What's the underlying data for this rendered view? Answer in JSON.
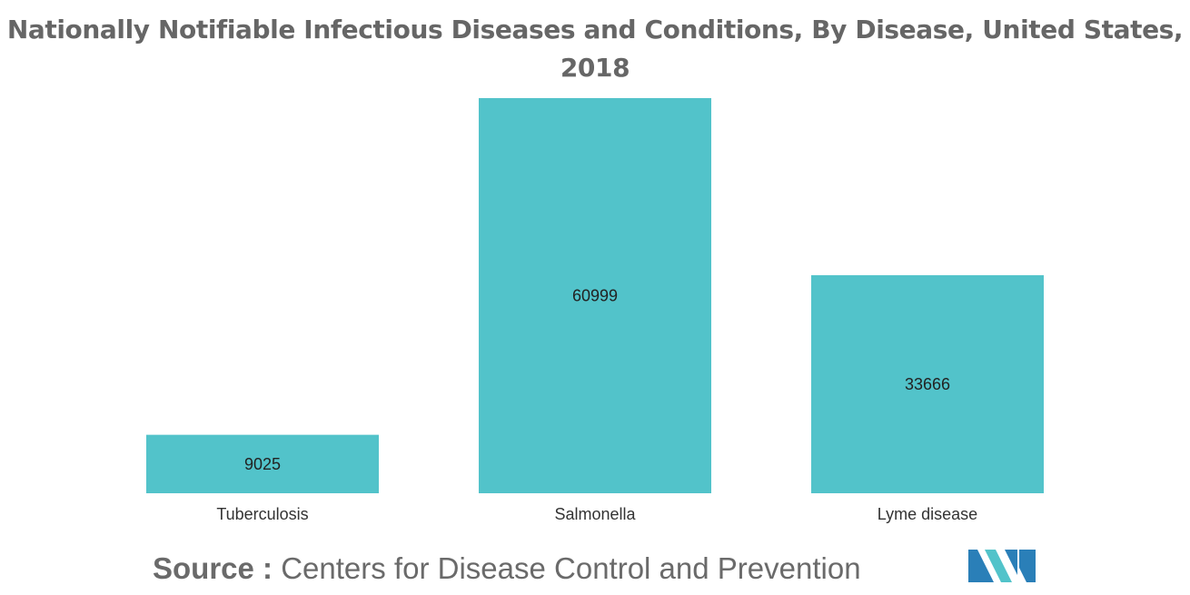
{
  "chart_data": {
    "type": "bar",
    "title_lines": [
      "Nationally Notifiable Infectious Diseases and Conditions, By Disease, United States,",
      "2018"
    ],
    "categories": [
      "Tuberculosis",
      "Salmonella",
      "Lyme disease"
    ],
    "values": [
      9025,
      60999,
      33666
    ],
    "data_labels": [
      "9025",
      "60999",
      "33666"
    ],
    "ylim": [
      0,
      60999
    ],
    "xlabel": "",
    "ylabel": "",
    "grid": false,
    "legend": "none",
    "bar_color": "#52c3ca"
  },
  "source": {
    "prefix": "Source :",
    "text": "Centers for Disease Control and Prevention"
  },
  "logo": {
    "icon": "mordor-intelligence-logo-icon",
    "colors": [
      "#2a7fb8",
      "#52c3ca"
    ]
  }
}
